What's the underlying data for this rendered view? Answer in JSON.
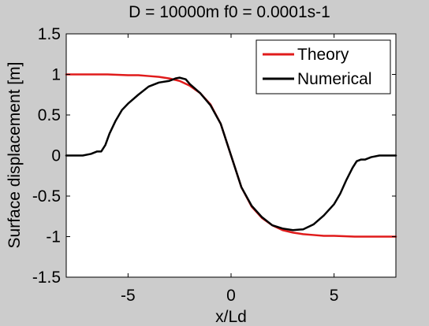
{
  "chart_data": {
    "type": "line",
    "title": "D = 10000m  f0 = 0.0001s-1",
    "xlabel": "x/Ld",
    "ylabel": "Surface displacement [m]",
    "xlim": [
      -8,
      8
    ],
    "ylim": [
      -1.5,
      1.5
    ],
    "xticks": [
      -5,
      0,
      5
    ],
    "xtick_labels": [
      "-5",
      "0",
      "5"
    ],
    "yticks": [
      -1.5,
      -1,
      -0.5,
      0,
      0.5,
      1,
      1.5
    ],
    "ytick_labels": [
      "-1.5",
      "-1",
      "-0.5",
      "0",
      "0.5",
      "1",
      "1.5"
    ],
    "grid": false,
    "legend_position": "top-right",
    "colors": {
      "figure_background": "#cccccc",
      "axes_background": "#ffffff"
    },
    "series": [
      {
        "name": "Theory",
        "color": "#e01b1b",
        "x": [
          -8,
          -7,
          -6,
          -5,
          -4.5,
          -4,
          -3.5,
          -3,
          -2.5,
          -2,
          -1.5,
          -1,
          -0.5,
          0,
          0.5,
          1,
          1.5,
          2,
          2.5,
          3,
          3.5,
          4,
          4.5,
          5,
          6,
          7,
          8
        ],
        "y": [
          1.0,
          1.0,
          1.0,
          0.99,
          0.99,
          0.98,
          0.97,
          0.95,
          0.92,
          0.86,
          0.77,
          0.63,
          0.39,
          0.0,
          -0.39,
          -0.63,
          -0.77,
          -0.86,
          -0.92,
          -0.95,
          -0.97,
          -0.98,
          -0.99,
          -0.99,
          -1.0,
          -1.0,
          -1.0
        ]
      },
      {
        "name": "Numerical",
        "color": "#000000",
        "x": [
          -8,
          -7.2,
          -6.8,
          -6.5,
          -6.3,
          -6.1,
          -5.9,
          -5.6,
          -5.3,
          -5.0,
          -4.5,
          -4.0,
          -3.5,
          -3.0,
          -2.7,
          -2.5,
          -2.2,
          -2.0,
          -1.5,
          -1.0,
          -0.5,
          0,
          0.5,
          1.0,
          1.5,
          2.0,
          2.5,
          3.0,
          3.5,
          4.0,
          4.5,
          5.0,
          5.3,
          5.6,
          5.9,
          6.1,
          6.3,
          6.5,
          6.8,
          7.2,
          8
        ],
        "y": [
          0.0,
          0.0,
          0.02,
          0.05,
          0.05,
          0.13,
          0.27,
          0.43,
          0.56,
          0.64,
          0.75,
          0.85,
          0.9,
          0.92,
          0.95,
          0.96,
          0.94,
          0.88,
          0.77,
          0.62,
          0.39,
          0.0,
          -0.39,
          -0.62,
          -0.76,
          -0.86,
          -0.9,
          -0.92,
          -0.91,
          -0.85,
          -0.74,
          -0.6,
          -0.47,
          -0.3,
          -0.15,
          -0.07,
          -0.05,
          -0.05,
          -0.02,
          0.0,
          0.0
        ]
      }
    ]
  }
}
